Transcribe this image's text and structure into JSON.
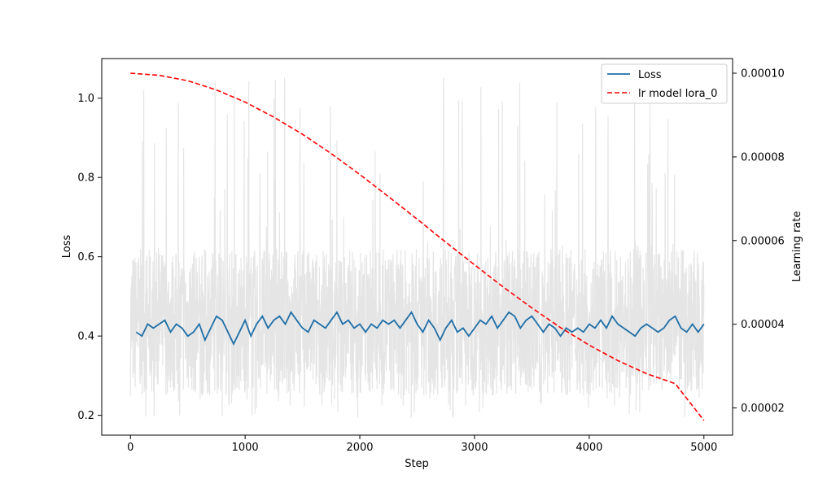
{
  "chart_data": {
    "type": "line",
    "xlabel": "Step",
    "ylabel_left": "Loss",
    "ylabel_right": "Learning rate",
    "xlim": [
      -250,
      5250
    ],
    "ylim_left": [
      0.15,
      1.1
    ],
    "ylim_right": [
      1.35e-05,
      0.0001035
    ],
    "x_ticks": [
      0,
      1000,
      2000,
      3000,
      4000,
      5000
    ],
    "x_tick_labels": [
      "0",
      "1000",
      "2000",
      "3000",
      "4000",
      "5000"
    ],
    "y_left_ticks": [
      0.2,
      0.4,
      0.6,
      0.8,
      1.0
    ],
    "y_left_tick_labels": [
      "0.2",
      "0.4",
      "0.6",
      "0.8",
      "1.0"
    ],
    "y_right_ticks": [
      2e-05,
      4e-05,
      6e-05,
      8e-05,
      0.0001
    ],
    "y_right_tick_labels": [
      "0.00002",
      "0.00004",
      "0.00006",
      "0.00008",
      "0.00010"
    ],
    "grid": false,
    "legend_position": "top-right",
    "series": [
      {
        "name": "Loss",
        "axis": "left",
        "color": "#1f6fa8",
        "style": "solid",
        "x": [
          50,
          100,
          150,
          200,
          250,
          300,
          350,
          400,
          450,
          500,
          550,
          600,
          650,
          700,
          750,
          800,
          850,
          900,
          950,
          1000,
          1050,
          1100,
          1150,
          1200,
          1250,
          1300,
          1350,
          1400,
          1450,
          1500,
          1550,
          1600,
          1650,
          1700,
          1750,
          1800,
          1850,
          1900,
          1950,
          2000,
          2050,
          2100,
          2150,
          2200,
          2250,
          2300,
          2350,
          2400,
          2450,
          2500,
          2550,
          2600,
          2650,
          2700,
          2750,
          2800,
          2850,
          2900,
          2950,
          3000,
          3050,
          3100,
          3150,
          3200,
          3250,
          3300,
          3350,
          3400,
          3450,
          3500,
          3550,
          3600,
          3650,
          3700,
          3750,
          3800,
          3850,
          3900,
          3950,
          4000,
          4050,
          4100,
          4150,
          4200,
          4250,
          4300,
          4350,
          4400,
          4450,
          4500,
          4550,
          4600,
          4650,
          4700,
          4750,
          4800,
          4850,
          4900,
          4950,
          5000
        ],
        "y": [
          0.41,
          0.4,
          0.43,
          0.42,
          0.43,
          0.44,
          0.41,
          0.43,
          0.42,
          0.4,
          0.41,
          0.43,
          0.39,
          0.42,
          0.45,
          0.44,
          0.41,
          0.38,
          0.41,
          0.44,
          0.4,
          0.43,
          0.45,
          0.42,
          0.44,
          0.45,
          0.43,
          0.46,
          0.44,
          0.42,
          0.41,
          0.44,
          0.43,
          0.42,
          0.44,
          0.46,
          0.43,
          0.44,
          0.42,
          0.43,
          0.41,
          0.43,
          0.42,
          0.44,
          0.43,
          0.44,
          0.42,
          0.44,
          0.46,
          0.43,
          0.41,
          0.44,
          0.42,
          0.39,
          0.42,
          0.44,
          0.41,
          0.42,
          0.4,
          0.42,
          0.44,
          0.43,
          0.45,
          0.42,
          0.44,
          0.46,
          0.45,
          0.42,
          0.44,
          0.45,
          0.43,
          0.41,
          0.43,
          0.42,
          0.4,
          0.42,
          0.41,
          0.42,
          0.41,
          0.43,
          0.42,
          0.44,
          0.42,
          0.45,
          0.43,
          0.42,
          0.41,
          0.4,
          0.42,
          0.43,
          0.42,
          0.41,
          0.42,
          0.44,
          0.45,
          0.42,
          0.41,
          0.43,
          0.41,
          0.43
        ]
      },
      {
        "name": "lr model lora_0",
        "axis": "right",
        "color": "#ff0000",
        "style": "dashed",
        "x": [
          0,
          250,
          500,
          750,
          1000,
          1250,
          1500,
          1750,
          2000,
          2250,
          2500,
          2750,
          3000,
          3250,
          3500,
          3750,
          4000,
          4250,
          4500,
          4750,
          5000
        ],
        "y": [
          0.0001,
          9.95e-05,
          9.82e-05,
          9.6e-05,
          9.31e-05,
          8.95e-05,
          8.54e-05,
          8.08e-05,
          7.58e-05,
          7.05e-05,
          6.51e-05,
          5.96e-05,
          5.42e-05,
          4.89e-05,
          4.39e-05,
          3.92e-05,
          3.5e-05,
          3.13e-05,
          2.82e-05,
          2.58e-05,
          1.7e-05
        ]
      }
    ],
    "raw_loss_band": {
      "color": "#e5e5e5",
      "x_range": [
        0,
        5000
      ],
      "typical_range": [
        0.25,
        0.62
      ],
      "min": 0.19,
      "max": 1.06
    }
  }
}
